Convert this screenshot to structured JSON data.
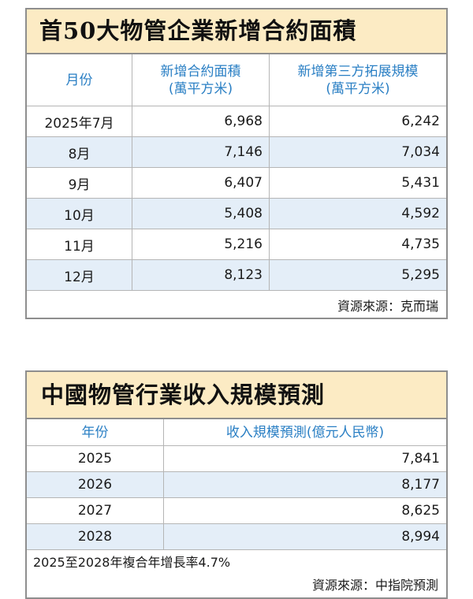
{
  "table1": {
    "title": "首50大物管企業新增合約面積",
    "headers": [
      {
        "line1": "月份",
        "line2": ""
      },
      {
        "line1": "新增合約面積",
        "line2": "(萬平方米)"
      },
      {
        "line1": "新增第三方拓展規模",
        "line2": "(萬平方米)"
      }
    ],
    "rows": [
      {
        "month": "2025年7月",
        "contract": "6,968",
        "third_party": "6,242"
      },
      {
        "month": "8月",
        "contract": "7,146",
        "third_party": "7,034"
      },
      {
        "month": "9月",
        "contract": "6,407",
        "third_party": "5,431"
      },
      {
        "month": "10月",
        "contract": "5,408",
        "third_party": "4,592"
      },
      {
        "month": "11月",
        "contract": "5,216",
        "third_party": "4,735"
      },
      {
        "month": "12月",
        "contract": "8,123",
        "third_party": "5,295"
      }
    ],
    "source": "資源來源：克而瑞"
  },
  "table2": {
    "title": "中國物管行業收入規模預測",
    "headers": [
      "年份",
      "收入規模預測(億元人民幣)"
    ],
    "rows": [
      {
        "year": "2025",
        "revenue": "7,841"
      },
      {
        "year": "2026",
        "revenue": "8,177"
      },
      {
        "year": "2027",
        "revenue": "8,625"
      },
      {
        "year": "2028",
        "revenue": "8,994"
      }
    ],
    "note": "2025至2028年複合年增長率4.7%",
    "source": "資源來源：中指院預測"
  },
  "colors": {
    "title_bg": "#fcebc4",
    "header_text": "#2a7fc4",
    "alt_row": "#e4eef8",
    "border": "#8e8e8e"
  }
}
